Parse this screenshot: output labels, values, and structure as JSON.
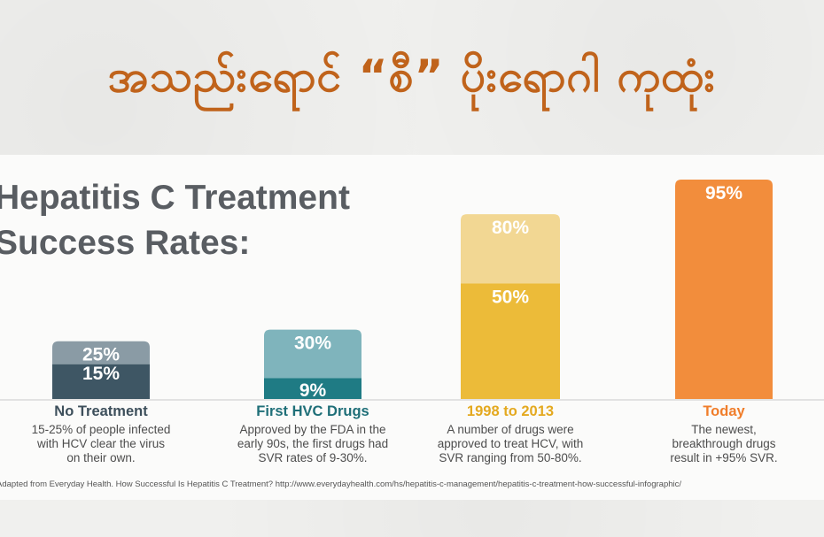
{
  "headline": "အသည်းရောင် “စီ” ပိုးရောဂါ ကုထုံး",
  "chart_data": {
    "type": "bar",
    "title_lines": [
      "Hepatitis C Treatment",
      "Success Rates:"
    ],
    "ylim": [
      0,
      100
    ],
    "unit": "%",
    "categories": [
      {
        "title": "No Treatment",
        "desc_lines": [
          "15-25% of people infected",
          "with HCV clear the virus",
          "on their own."
        ],
        "range": [
          15,
          25
        ],
        "labels": [
          "15%",
          "25%"
        ],
        "colors": {
          "low": "#3e5664",
          "high": "#8a9ba5",
          "title": "#3d4f5b"
        }
      },
      {
        "title": "First HVC Drugs",
        "desc_lines": [
          "Approved by the FDA in the",
          "early 90s, the first drugs had",
          "SVR rates of 9-30%."
        ],
        "range": [
          9,
          30
        ],
        "labels": [
          "9%",
          "30%"
        ],
        "colors": {
          "low": "#1f7b84",
          "high": "#7fb4bc",
          "title": "#1f6f78"
        }
      },
      {
        "title": "1998 to 2013",
        "desc_lines": [
          "A number of drugs were",
          "approved to treat HCV, with",
          "SVR ranging from 50-80%."
        ],
        "range": [
          50,
          80
        ],
        "labels": [
          "50%",
          "80%"
        ],
        "colors": {
          "low": "#ecbb39",
          "high": "#f2d793",
          "title": "#e4a91f"
        }
      },
      {
        "title": "Today",
        "desc_lines": [
          "The newest,",
          "breakthrough drugs",
          "result in +95% SVR."
        ],
        "range": [
          95,
          95
        ],
        "labels": [
          "95%"
        ],
        "colors": {
          "low": "#f28d3c",
          "high": "#f28d3c",
          "title": "#f07d2a"
        }
      }
    ],
    "source": "Adapted from Everyday Health. How Successful Is Hepatitis C Treatment?   http://www.everydayhealth.com/hs/hepatitis-c-management/hepatitis-c-treatment-how-successful-infographic/"
  }
}
